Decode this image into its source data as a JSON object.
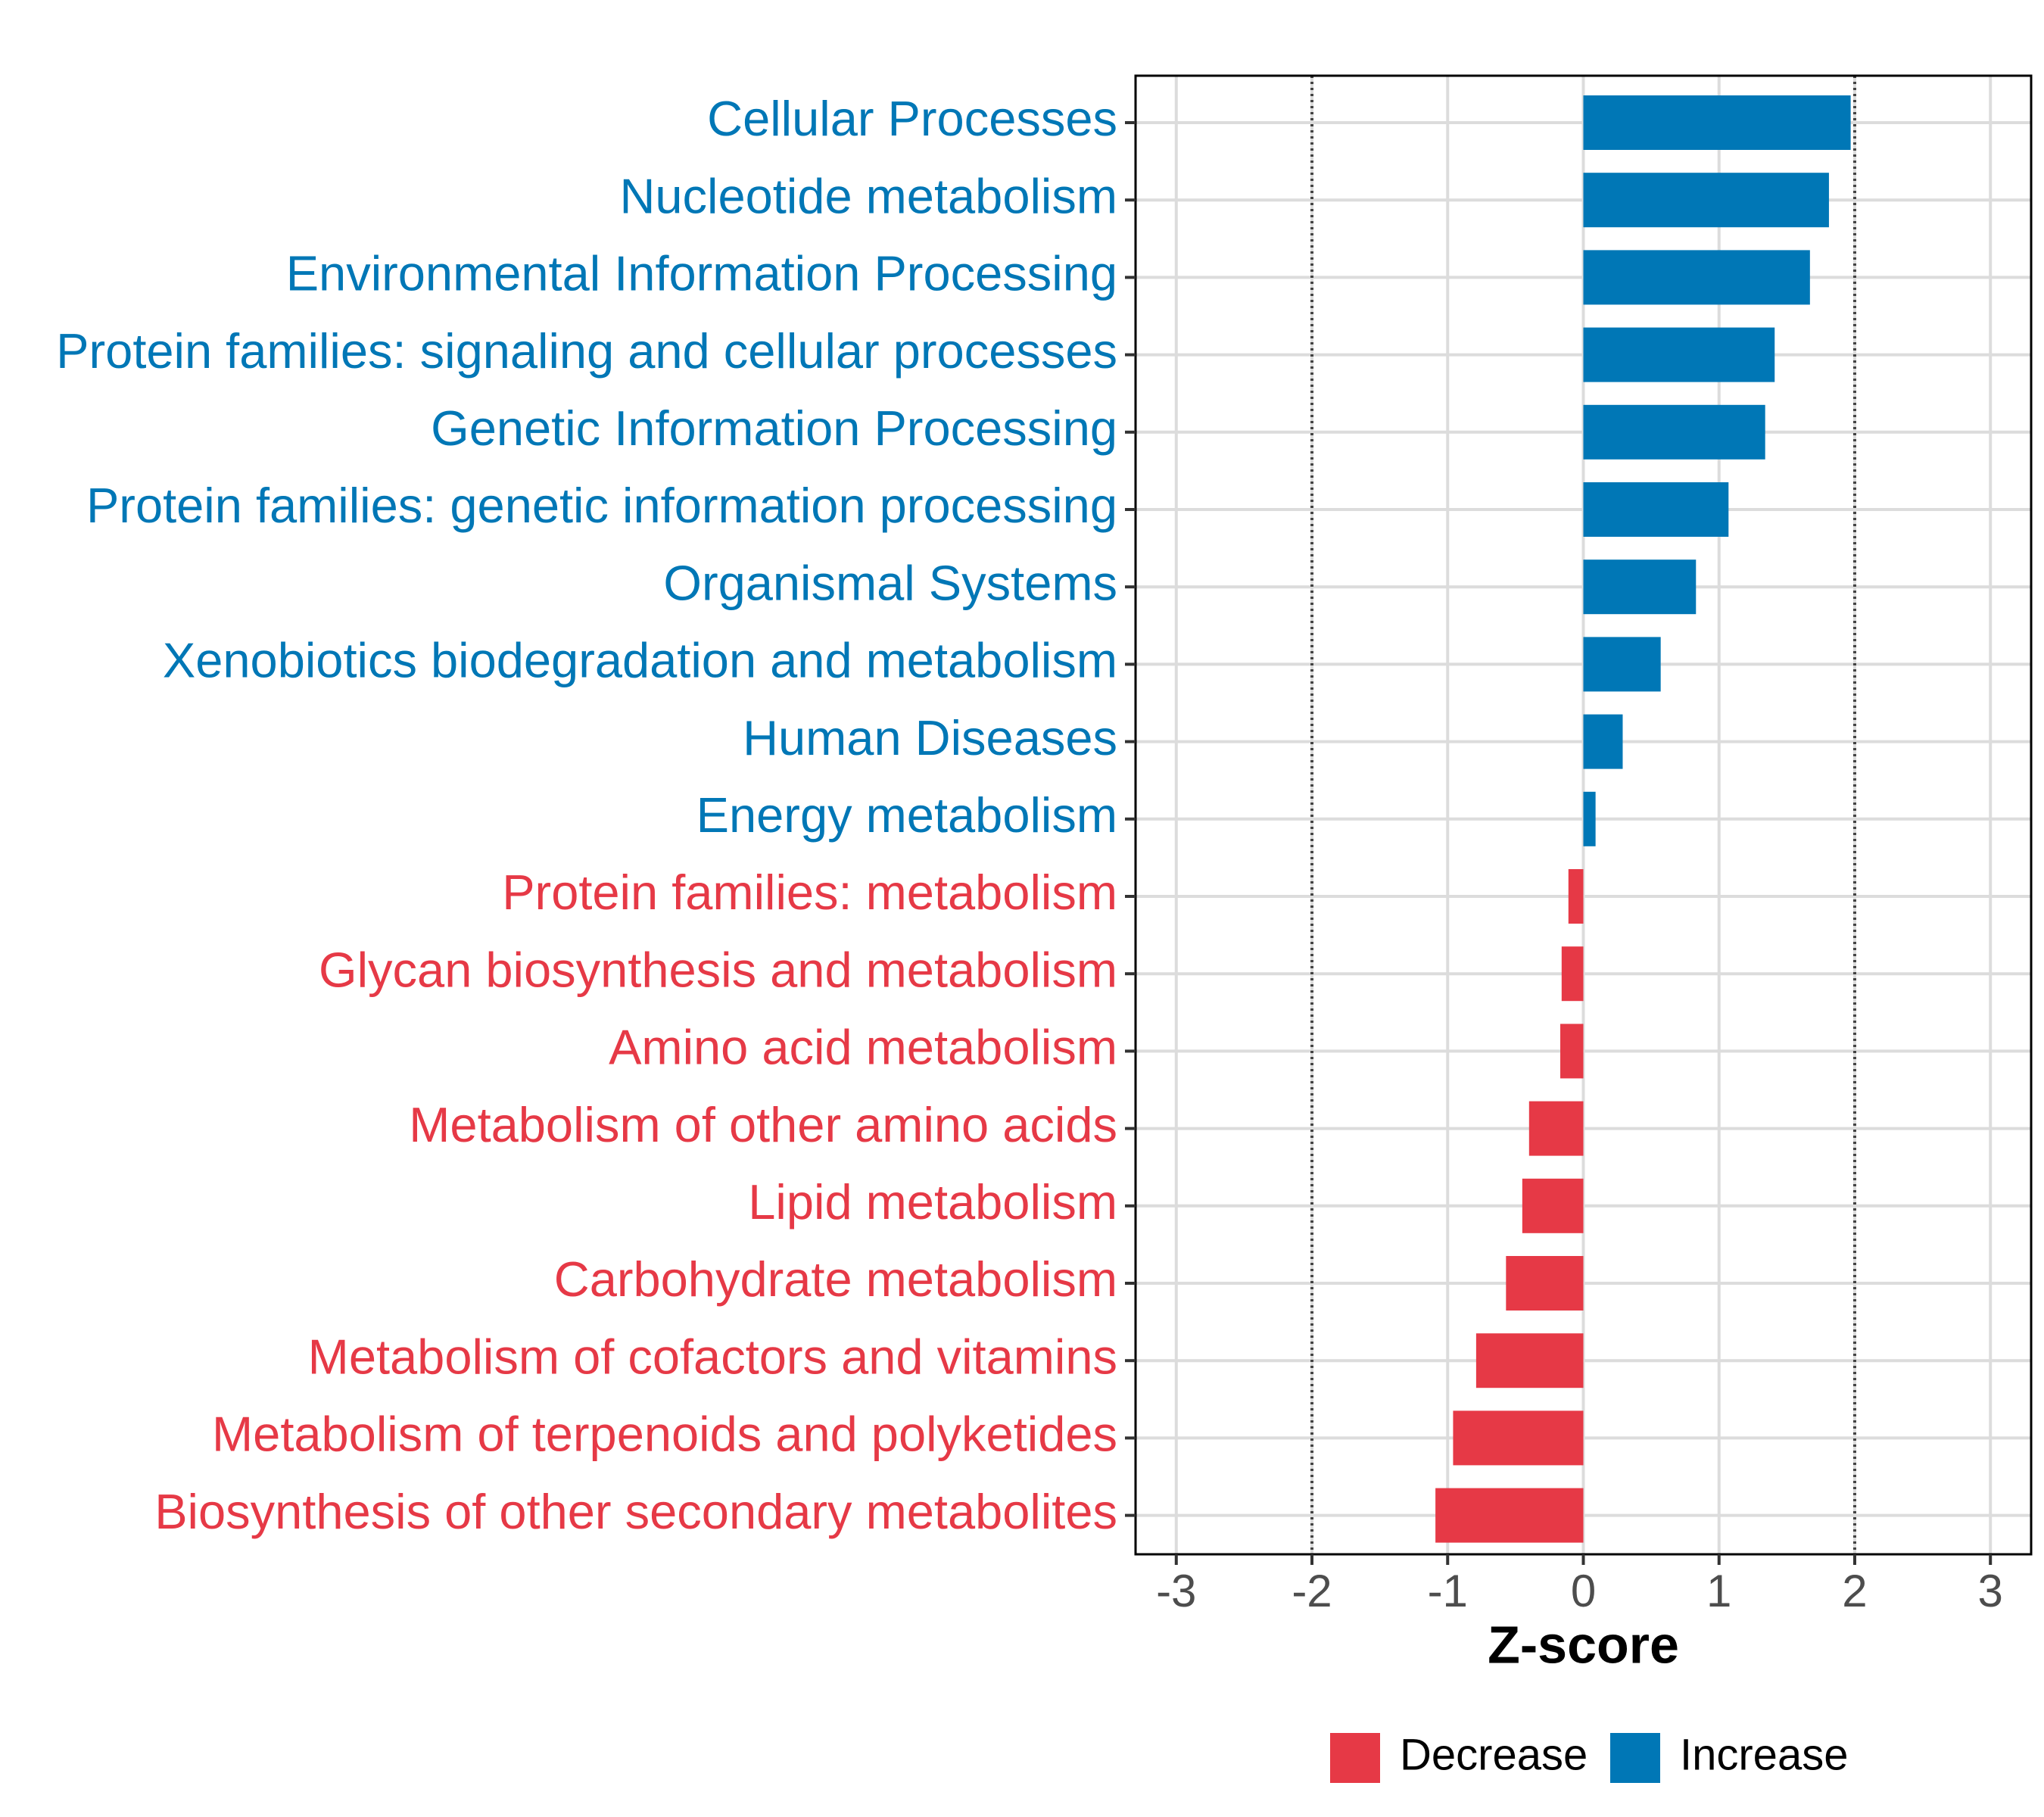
{
  "chart_data": {
    "type": "bar",
    "orientation": "horizontal",
    "title": "",
    "xlabel": "Z-score",
    "ylabel": "",
    "xlim": [
      -3.3,
      3.3
    ],
    "xticks": [
      -3,
      -2,
      -1,
      0,
      1,
      2,
      3
    ],
    "xtick_labels": [
      "-3",
      "-2",
      "-1",
      "0",
      "1",
      "2",
      "3"
    ],
    "reference_lines": [
      -2,
      2
    ],
    "grid": true,
    "colors": {
      "Decrease": "#E63946",
      "Increase": "#0077B6"
    },
    "legend": {
      "placement": "bottom",
      "entries": [
        "Decrease",
        "Increase"
      ]
    },
    "categories": [
      "Cellular Processes",
      "Nucleotide metabolism",
      "Environmental Information Processing",
      "Protein families: signaling and cellular processes",
      "Genetic Information Processing",
      "Protein families: genetic information processing",
      "Organismal Systems",
      "Xenobiotics biodegradation and metabolism",
      "Human Diseases",
      "Energy metabolism",
      "Protein families: metabolism",
      "Glycan biosynthesis and metabolism",
      "Amino acid metabolism",
      "Metabolism of other amino acids",
      "Lipid metabolism",
      "Carbohydrate metabolism",
      "Metabolism of cofactors and vitamins",
      "Metabolism of terpenoids and polyketides",
      "Biosynthesis of other secondary metabolites"
    ],
    "values": [
      1.97,
      1.81,
      1.67,
      1.41,
      1.34,
      1.07,
      0.83,
      0.57,
      0.29,
      0.09,
      -0.11,
      -0.16,
      -0.17,
      -0.4,
      -0.45,
      -0.57,
      -0.79,
      -0.96,
      -1.09
    ],
    "groups": [
      "Increase",
      "Increase",
      "Increase",
      "Increase",
      "Increase",
      "Increase",
      "Increase",
      "Increase",
      "Increase",
      "Increase",
      "Decrease",
      "Decrease",
      "Decrease",
      "Decrease",
      "Decrease",
      "Decrease",
      "Decrease",
      "Decrease",
      "Decrease"
    ]
  }
}
